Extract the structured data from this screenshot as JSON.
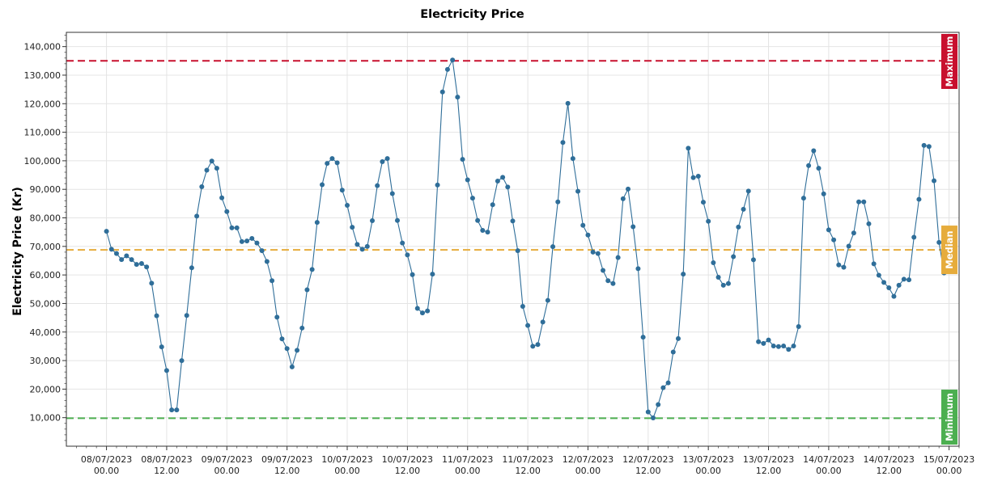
{
  "chart_data": {
    "type": "line",
    "title": "Electricity Price",
    "ylabel": "Electricity Price (Kr)",
    "xlabel": "",
    "ylim": [
      0,
      145000
    ],
    "yticks": [
      10000,
      20000,
      30000,
      40000,
      50000,
      60000,
      70000,
      80000,
      90000,
      100000,
      110000,
      120000,
      130000,
      140000
    ],
    "ytick_labels": [
      "10,000",
      "20,000",
      "30,000",
      "40,000",
      "50,000",
      "60,000",
      "70,000",
      "80,000",
      "90,000",
      "100,000",
      "110,000",
      "120,000",
      "130,000",
      "140,000"
    ],
    "xlim_hours": [
      -8,
      170
    ],
    "xticks": [
      {
        "hour": 0,
        "date": "08/07/2023",
        "time": "00.00"
      },
      {
        "hour": 12,
        "date": "08/07/2023",
        "time": "12.00"
      },
      {
        "hour": 24,
        "date": "09/07/2023",
        "time": "00.00"
      },
      {
        "hour": 36,
        "date": "09/07/2023",
        "time": "12.00"
      },
      {
        "hour": 48,
        "date": "10/07/2023",
        "time": "00.00"
      },
      {
        "hour": 60,
        "date": "10/07/2023",
        "time": "12.00"
      },
      {
        "hour": 72,
        "date": "11/07/2023",
        "time": "00.00"
      },
      {
        "hour": 84,
        "date": "11/07/2023",
        "time": "12.00"
      },
      {
        "hour": 96,
        "date": "12/07/2023",
        "time": "00.00"
      },
      {
        "hour": 108,
        "date": "12/07/2023",
        "time": "12.00"
      },
      {
        "hour": 120,
        "date": "13/07/2023",
        "time": "00.00"
      },
      {
        "hour": 132,
        "date": "13/07/2023",
        "time": "12.00"
      },
      {
        "hour": 144,
        "date": "14/07/2023",
        "time": "00.00"
      },
      {
        "hour": 156,
        "date": "14/07/2023",
        "time": "12.00"
      },
      {
        "hour": 168,
        "date": "15/07/2023",
        "time": "00.00"
      }
    ],
    "x_start": "08/07/2023 00.00",
    "x_step_hours": 1,
    "series": [
      {
        "color": "#2f6e99",
        "values": [
          75300,
          69000,
          67500,
          65400,
          66700,
          65400,
          63700,
          64000,
          62800,
          57100,
          45700,
          34800,
          26500,
          12700,
          12700,
          30000,
          45800,
          62500,
          80600,
          90900,
          96700,
          99900,
          97400,
          87000,
          82200,
          76500,
          76500,
          71700,
          71900,
          72800,
          71200,
          68500,
          64700,
          58000,
          45200,
          37600,
          34200,
          27800,
          33600,
          41400,
          54800,
          61900,
          78400,
          91600,
          99100,
          100800,
          99300,
          89700,
          84400,
          76700,
          70700,
          69000,
          70000,
          79000,
          91300,
          99700,
          100800,
          88500,
          79100,
          71200,
          67000,
          60100,
          48300,
          46700,
          47400,
          60300,
          91500,
          124100,
          132000,
          135300,
          122300,
          100500,
          93300,
          86900,
          79100,
          75600,
          75000,
          84600,
          92900,
          94200,
          90800,
          78900,
          68500,
          49000,
          42300,
          35000,
          35600,
          43500,
          51100,
          69900,
          85600,
          106400,
          120100,
          100800,
          89300,
          77400,
          74000,
          68000,
          67500,
          61600,
          58000,
          57000,
          66100,
          86700,
          90100,
          76900,
          62200,
          38200,
          12000,
          9900,
          14600,
          20500,
          22200,
          33000,
          37700,
          60300,
          104400,
          94100,
          94600,
          85500,
          78800,
          64300,
          59200,
          56400,
          57000,
          66400,
          76800,
          83000,
          89400,
          65300,
          36600,
          36000,
          37200,
          35100,
          34900,
          35100,
          33900,
          35100,
          41900,
          86900,
          98300,
          103500,
          97400,
          88400,
          75800,
          72300,
          63500,
          62700,
          70100,
          74700,
          85600,
          85600,
          77900,
          63900,
          59900,
          57400,
          55500,
          52500,
          56400,
          58500,
          58300,
          73200,
          86500,
          105400,
          105000,
          93000,
          71400,
          60700
        ]
      }
    ],
    "reference_lines": [
      {
        "label": "Maximum",
        "value": 135000,
        "color": "#c8102e"
      },
      {
        "label": "Median",
        "value": 68800,
        "color": "#e6ac3c"
      },
      {
        "label": "Minimum",
        "value": 9800,
        "color": "#4caf50"
      }
    ],
    "grid": true,
    "legend": "none"
  }
}
